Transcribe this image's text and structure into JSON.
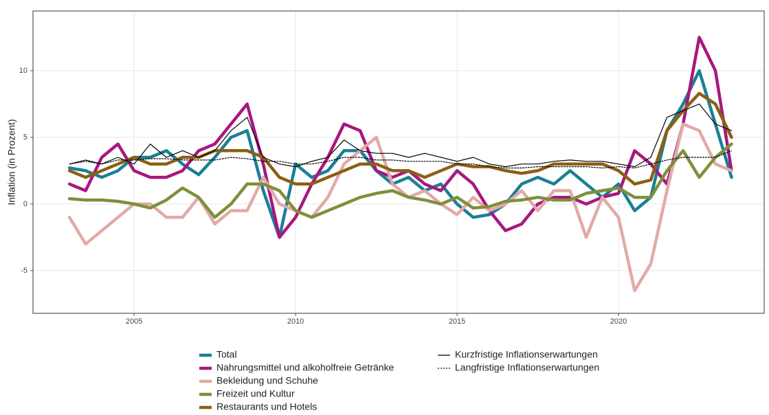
{
  "chart_data": {
    "type": "line",
    "ylabel": "Inflation (in Prozent)",
    "x": [
      2003,
      2003.5,
      2004,
      2004.5,
      2005,
      2005.5,
      2006,
      2006.5,
      2007,
      2007.5,
      2008,
      2008.5,
      2009,
      2009.5,
      2010,
      2010.5,
      2011,
      2011.5,
      2012,
      2012.5,
      2013,
      2013.5,
      2014,
      2014.5,
      2015,
      2015.5,
      2016,
      2016.5,
      2017,
      2017.5,
      2018,
      2018.5,
      2019,
      2019.5,
      2020,
      2020.5,
      2021,
      2021.5,
      2022,
      2022.5,
      2023,
      2023.5
    ],
    "xlim": [
      2001.87,
      2024.51
    ],
    "xticks": [
      2005,
      2010,
      2015,
      2020
    ],
    "ylim": [
      -8.2,
      14.48
    ],
    "yticks": [
      -5,
      0,
      5,
      10
    ],
    "grid": true,
    "legend": "bottom",
    "series": [
      {
        "name": "Total",
        "color": "#1a7f95",
        "linestyle": "thick",
        "values": [
          2.7,
          2.5,
          2.0,
          2.5,
          3.5,
          3.5,
          4.0,
          3.0,
          2.2,
          3.5,
          5.0,
          5.5,
          1.0,
          -2.5,
          3.0,
          2.0,
          2.5,
          4.0,
          4.0,
          2.5,
          1.5,
          2.0,
          1.0,
          1.5,
          0.0,
          -1.0,
          -0.8,
          0.0,
          1.5,
          2.0,
          1.5,
          2.5,
          1.5,
          0.5,
          1.5,
          -0.5,
          0.5,
          5.5,
          7.5,
          10.0,
          6.0,
          2.0
        ]
      },
      {
        "name": "Nahrungsmittel und alkoholfreie Getränke",
        "color": "#a8177e",
        "linestyle": "thick",
        "values": [
          1.5,
          1.0,
          3.5,
          4.5,
          2.5,
          2.0,
          2.0,
          2.5,
          4.0,
          4.5,
          6.0,
          7.5,
          3.0,
          -2.5,
          -1.0,
          1.5,
          3.5,
          6.0,
          5.5,
          2.5,
          2.0,
          2.5,
          1.5,
          1.0,
          2.5,
          1.5,
          -0.5,
          -2.0,
          -1.5,
          0.0,
          0.5,
          0.5,
          0.0,
          0.5,
          0.8,
          4.0,
          3.0,
          1.5,
          6.0,
          12.5,
          10.0,
          2.5
        ]
      },
      {
        "name": "Bekleidung und Schuhe",
        "color": "#e2aaa8",
        "linestyle": "thick",
        "values": [
          -1.0,
          -3.0,
          -2.0,
          -1.0,
          0.0,
          0.0,
          -1.0,
          -1.0,
          0.5,
          -1.5,
          -0.5,
          -0.5,
          2.0,
          0.0,
          -0.5,
          -1.0,
          0.5,
          3.0,
          4.0,
          5.0,
          1.5,
          0.5,
          1.0,
          0.0,
          -0.8,
          0.5,
          -0.5,
          0.0,
          1.0,
          -0.5,
          1.0,
          1.0,
          -2.5,
          0.5,
          -1.0,
          -6.5,
          -4.5,
          1.0,
          6.0,
          5.5,
          3.0,
          2.5
        ]
      },
      {
        "name": "Freizeit und Kultur",
        "color": "#7f8f3c",
        "linestyle": "thick",
        "values": [
          0.4,
          0.3,
          0.3,
          0.2,
          0.0,
          -0.3,
          0.3,
          1.2,
          0.5,
          -1.0,
          0.0,
          1.5,
          1.5,
          1.0,
          -0.5,
          -1.0,
          -0.5,
          0.0,
          0.5,
          0.8,
          1.0,
          0.5,
          0.3,
          0.0,
          0.5,
          -0.3,
          -0.2,
          0.2,
          0.3,
          0.5,
          0.3,
          0.3,
          0.8,
          1.0,
          1.2,
          0.5,
          0.5,
          2.5,
          4.0,
          2.0,
          3.5,
          4.5
        ]
      },
      {
        "name": "Restaurants und Hotels",
        "color": "#8c5f14",
        "linestyle": "thick",
        "values": [
          2.5,
          2.0,
          2.5,
          3.0,
          3.5,
          3.0,
          3.0,
          3.5,
          3.5,
          4.0,
          4.0,
          4.0,
          3.5,
          2.0,
          1.5,
          1.5,
          2.0,
          2.5,
          3.0,
          3.0,
          2.5,
          2.5,
          2.0,
          2.5,
          3.0,
          2.8,
          2.8,
          2.5,
          2.3,
          2.5,
          3.0,
          3.0,
          3.0,
          3.0,
          2.5,
          1.5,
          1.8,
          5.5,
          7.0,
          8.3,
          7.5,
          5.0
        ]
      },
      {
        "name": "Kurzfristige Inflationserwartungen",
        "color": "#000000",
        "linestyle": "thin",
        "values": [
          3.0,
          3.3,
          3.0,
          3.5,
          3.0,
          4.5,
          3.5,
          4.0,
          3.5,
          4.0,
          5.5,
          6.5,
          3.5,
          3.0,
          2.8,
          3.2,
          3.5,
          4.8,
          4.0,
          3.8,
          3.8,
          3.5,
          3.8,
          3.5,
          3.2,
          3.5,
          3.0,
          2.8,
          3.0,
          3.0,
          3.2,
          3.3,
          3.2,
          3.2,
          3.0,
          2.8,
          3.5,
          6.5,
          7.0,
          7.5,
          6.0,
          5.5
        ]
      },
      {
        "name": "Langfristige Inflationserwartungen",
        "color": "#000000",
        "linestyle": "dotted",
        "values": [
          3.0,
          3.2,
          3.0,
          3.3,
          3.3,
          3.4,
          3.4,
          3.3,
          3.3,
          3.3,
          3.5,
          3.4,
          3.2,
          3.2,
          3.0,
          3.0,
          3.2,
          3.5,
          3.5,
          3.3,
          3.3,
          3.2,
          3.2,
          3.2,
          3.0,
          3.0,
          2.8,
          2.7,
          2.7,
          2.8,
          2.8,
          2.8,
          2.8,
          2.7,
          2.8,
          2.7,
          3.0,
          3.3,
          3.5,
          3.5,
          3.5,
          4.0
        ]
      }
    ]
  }
}
